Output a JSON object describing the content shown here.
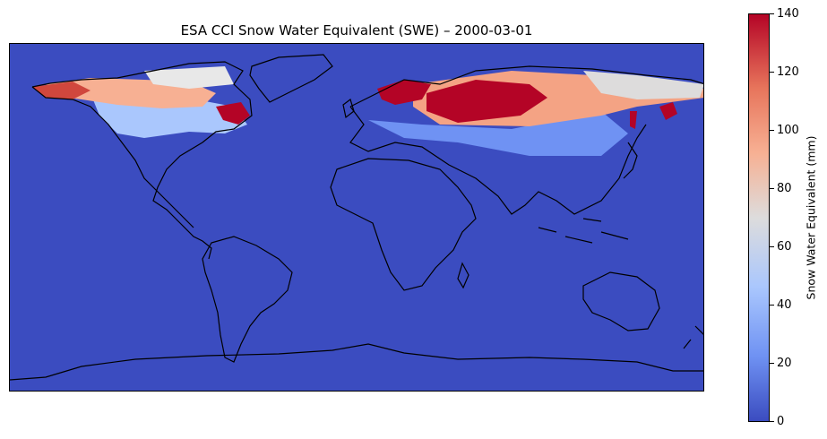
{
  "title": "ESA CCI Snow Water Equivalent (SWE) – 2000-03-01",
  "colorbar": {
    "label": "Snow Water Equivalent (mm)",
    "ticks": [
      "0",
      "20",
      "40",
      "60",
      "80",
      "100",
      "120",
      "140"
    ],
    "min": 0,
    "max": 140,
    "colormap": "coolwarm"
  },
  "colors": {
    "ocean_and_no_snow": "#3b4cc0",
    "coastline": "#000000",
    "low_swe": "#6f92f3",
    "mid_swe": "#dddcdc",
    "high_swe": "#b40426"
  }
}
